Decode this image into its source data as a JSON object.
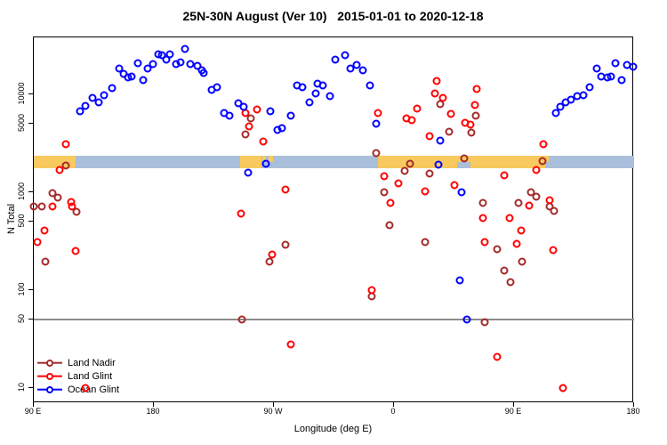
{
  "title": "25N-30N August (Ver 10)   2015-01-01 to 2020-12-18",
  "colors": {
    "land_nadir": "#A52A2A",
    "land_glint": "#FF0000",
    "ocean_glint": "#0000FF",
    "band_ocean": "#A9BFDB",
    "band_land": "#F8C95E",
    "reference_line": "#8C8C8C",
    "axis": "#000000"
  },
  "chart_data": {
    "type": "scatter",
    "title": "25N-30N August (Ver 10)   2015-01-01 to 2020-12-18",
    "xlabel": "Longitude (deg E)",
    "ylabel": "N Total",
    "yscale": "log",
    "grid": false,
    "legend_position": "bottom-left",
    "x_axis_note": "longitude in deg E increasing eastward, 90E wrapping to 180 twice",
    "x_ticks": [
      {
        "deg": 90,
        "label": "90 E"
      },
      {
        "deg": 180,
        "label": "180"
      },
      {
        "deg": 270,
        "label": "90 W"
      },
      {
        "deg": 360,
        "label": "0"
      },
      {
        "deg": 450,
        "label": "90 E"
      },
      {
        "deg": 540,
        "label": "180"
      }
    ],
    "y_ticks": [
      10000,
      5000,
      1000,
      500,
      100,
      50,
      10
    ],
    "ylim": [
      7,
      38000
    ],
    "reference_line": {
      "value": 50,
      "color": "#8C8C8C"
    },
    "band": {
      "description": "land/ocean strip drawn across plot near N=2000",
      "value_top": 2400,
      "value_bottom": 1800,
      "base_range_deg": [
        90,
        540
      ],
      "base_color": "#A9BFDB",
      "land_color": "#F8C95E",
      "land_segments": [
        {
          "from": 90,
          "to": 121.5,
          "part": "full"
        },
        {
          "from": 244.5,
          "to": 260.5,
          "part": "full"
        },
        {
          "from": 261.5,
          "to": 264,
          "part": "top"
        },
        {
          "from": 266,
          "to": 269,
          "part": "top"
        },
        {
          "from": 348,
          "to": 407.5,
          "part": "full"
        },
        {
          "from": 407.5,
          "to": 417.5,
          "part": "top"
        },
        {
          "from": 417.5,
          "to": 473,
          "part": "full"
        },
        {
          "from": 473,
          "to": 476,
          "part": "top"
        }
      ]
    },
    "series": [
      {
        "name": "Land Nadir",
        "color": "#A52A2A",
        "points": [
          [
            90,
            720
          ],
          [
            96.2,
            720
          ],
          [
            98.7,
            194
          ],
          [
            104,
            970
          ],
          [
            108,
            890
          ],
          [
            114,
            1880
          ],
          [
            122.2,
            630
          ],
          [
            245.8,
            50
          ],
          [
            248.7,
            3900
          ],
          [
            252.7,
            5700
          ],
          [
            266.9,
            194
          ],
          [
            278.7,
            290
          ],
          [
            343.1,
            87
          ],
          [
            346.7,
            2500
          ],
          [
            352.7,
            1010
          ],
          [
            356.5,
            460
          ],
          [
            368,
            1640
          ],
          [
            372,
            1960
          ],
          [
            383.1,
            308
          ],
          [
            386.9,
            1560
          ],
          [
            394.7,
            7900
          ],
          [
            401.3,
            4150
          ],
          [
            412.5,
            2200
          ],
          [
            418,
            4060
          ],
          [
            421.5,
            6100
          ],
          [
            426.5,
            780
          ],
          [
            428,
            47
          ],
          [
            437.5,
            260
          ],
          [
            442.5,
            158
          ],
          [
            447.5,
            120
          ],
          [
            453.1,
            770
          ],
          [
            455.8,
            194
          ],
          [
            462.5,
            1010
          ],
          [
            466.9,
            910
          ],
          [
            471.3,
            2070
          ],
          [
            476.5,
            720
          ],
          [
            479.8,
            640
          ]
        ]
      },
      {
        "name": "Land Glint",
        "color": "#FF0000",
        "points": [
          [
            92.7,
            310
          ],
          [
            97.8,
            410
          ],
          [
            103.8,
            720
          ],
          [
            109.5,
            1680
          ],
          [
            113.8,
            3100
          ],
          [
            118,
            790
          ],
          [
            118.7,
            720
          ],
          [
            121.3,
            250
          ],
          [
            128.7,
            10
          ],
          [
            245.3,
            600
          ],
          [
            248.7,
            6400
          ],
          [
            251.5,
            4700
          ],
          [
            257.5,
            7000
          ],
          [
            262,
            3300
          ],
          [
            268.7,
            230
          ],
          [
            278.7,
            1060
          ],
          [
            282.7,
            28
          ],
          [
            343.1,
            100
          ],
          [
            348.2,
            6400
          ],
          [
            352.7,
            1450
          ],
          [
            357.5,
            780
          ],
          [
            363.1,
            1240
          ],
          [
            369.1,
            5700
          ],
          [
            373.1,
            5400
          ],
          [
            377.1,
            7200
          ],
          [
            383.1,
            1020
          ],
          [
            386.9,
            3700
          ],
          [
            390.7,
            10200
          ],
          [
            392,
            13700
          ],
          [
            396.7,
            9200
          ],
          [
            402.7,
            6300
          ],
          [
            405.3,
            1170
          ],
          [
            413.1,
            5100
          ],
          [
            417.1,
            4900
          ],
          [
            420.9,
            7800
          ],
          [
            422,
            11300
          ],
          [
            426.5,
            550
          ],
          [
            428,
            310
          ],
          [
            437.5,
            21
          ],
          [
            442.5,
            1500
          ],
          [
            446.9,
            550
          ],
          [
            452,
            300
          ],
          [
            455.3,
            410
          ],
          [
            461.5,
            730
          ],
          [
            466.9,
            1700
          ],
          [
            472,
            3100
          ],
          [
            476.5,
            820
          ],
          [
            479.3,
            256
          ],
          [
            486.9,
            10
          ]
        ]
      },
      {
        "name": "Ocean Glint",
        "color": "#0000FF",
        "points": [
          [
            124.5,
            6700
          ],
          [
            128.9,
            7600
          ],
          [
            134,
            9200
          ],
          [
            138.5,
            8300
          ],
          [
            142.7,
            9700
          ],
          [
            148.9,
            11600
          ],
          [
            153.8,
            18500
          ],
          [
            157.3,
            16100
          ],
          [
            160.7,
            15000
          ],
          [
            163.3,
            15300
          ],
          [
            168.2,
            20900
          ],
          [
            172.2,
            14100
          ],
          [
            175.1,
            18500
          ],
          [
            179.3,
            20200
          ],
          [
            183.3,
            25800
          ],
          [
            186.2,
            25000
          ],
          [
            189.3,
            22500
          ],
          [
            191.8,
            25500
          ],
          [
            196.7,
            20200
          ],
          [
            200.3,
            21200
          ],
          [
            203.5,
            29100
          ],
          [
            207.5,
            20200
          ],
          [
            212.5,
            19500
          ],
          [
            216,
            17600
          ],
          [
            217.5,
            16600
          ],
          [
            223.5,
            11200
          ],
          [
            227.5,
            11800
          ],
          [
            232.5,
            6400
          ],
          [
            236.9,
            6100
          ],
          [
            243.1,
            8100
          ],
          [
            247.1,
            7500
          ],
          [
            250.9,
            1600
          ],
          [
            263.8,
            1960
          ],
          [
            267.1,
            6700
          ],
          [
            272.5,
            4300
          ],
          [
            276,
            4500
          ],
          [
            282.7,
            6100
          ],
          [
            287.5,
            12400
          ],
          [
            291.5,
            11800
          ],
          [
            296.5,
            8300
          ],
          [
            301.3,
            10300
          ],
          [
            302.7,
            12900
          ],
          [
            306.5,
            12400
          ],
          [
            312,
            9600
          ],
          [
            316,
            22600
          ],
          [
            323.1,
            25300
          ],
          [
            327.5,
            18200
          ],
          [
            332,
            19800
          ],
          [
            336.5,
            17600
          ],
          [
            342,
            12400
          ],
          [
            346.5,
            5000
          ],
          [
            393.5,
            1900
          ],
          [
            394.9,
            3400
          ],
          [
            409.3,
            125
          ],
          [
            410.5,
            1000
          ],
          [
            414.9,
            50
          ],
          [
            481.5,
            6500
          ],
          [
            484.9,
            7500
          ],
          [
            488.7,
            8300
          ],
          [
            492.5,
            8900
          ],
          [
            497.1,
            9600
          ],
          [
            502,
            9700
          ],
          [
            506.9,
            11800
          ],
          [
            512,
            18500
          ],
          [
            515.3,
            15300
          ],
          [
            520.2,
            15000
          ],
          [
            522.7,
            15300
          ],
          [
            526,
            20700
          ],
          [
            530.5,
            14100
          ],
          [
            534.9,
            19800
          ],
          [
            539.1,
            19200
          ]
        ]
      }
    ]
  }
}
